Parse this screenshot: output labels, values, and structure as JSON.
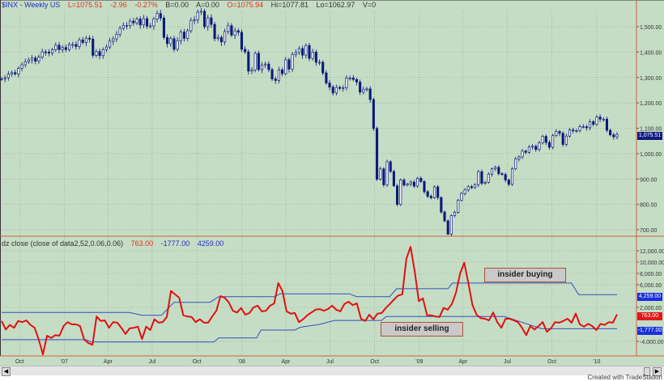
{
  "header": {
    "symbol": "$INX - Weekly  US",
    "last": "L=1075.51",
    "change": "-2.96",
    "change_pct": "-0.27%",
    "bid": "B=0.00",
    "ask": "A=0.00",
    "open": "O=1075.94",
    "high": "Hi=1077.81",
    "low": "Lo=1062.97",
    "volume": "V=0"
  },
  "indicator_header": {
    "name": "dz close (close of data2,52,0.06,0.06)",
    "value": "763.00",
    "lower_band": "-1777.00",
    "upper_band": "4259.00"
  },
  "annotations": {
    "buying": "insider buying",
    "selling": "insider selling"
  },
  "credit": "Created with TradeStation",
  "colors": {
    "background": "#c6ddc5",
    "candle": "#0a1a7a",
    "indicator": "#e01010",
    "bands": "#3050c0",
    "axis_line": "#d06040"
  },
  "chart_data": [
    {
      "type": "candlestick",
      "title": "$INX - Weekly",
      "interval": "weekly",
      "x_start": "2006-08-25",
      "x_end": "2010-02-12",
      "close": [
        1295,
        1299,
        1313,
        1319,
        1314,
        1336,
        1350,
        1362,
        1369,
        1377,
        1364,
        1380,
        1401,
        1400,
        1396,
        1409,
        1427,
        1410,
        1418,
        1410,
        1430,
        1430,
        1422,
        1448,
        1438,
        1455,
        1451,
        1387,
        1402,
        1386,
        1410,
        1420,
        1443,
        1452,
        1470,
        1494,
        1505,
        1505,
        1522,
        1515,
        1530,
        1507,
        1532,
        1502,
        1503,
        1530,
        1552,
        1534,
        1458,
        1433,
        1453,
        1411,
        1445,
        1479,
        1454,
        1484,
        1525,
        1527,
        1557,
        1561,
        1500,
        1535,
        1509,
        1453,
        1458,
        1440,
        1481,
        1504,
        1467,
        1484,
        1478,
        1411,
        1401,
        1325,
        1330,
        1395,
        1331,
        1349,
        1353,
        1331,
        1294,
        1288,
        1330,
        1315,
        1370,
        1333,
        1390,
        1398,
        1414,
        1388,
        1426,
        1375,
        1400,
        1360,
        1360,
        1318,
        1278,
        1262,
        1239,
        1261,
        1257,
        1260,
        1297,
        1298,
        1292,
        1282,
        1242,
        1252,
        1255,
        1213,
        1099,
        899,
        940,
        877,
        968,
        930,
        873,
        800,
        896,
        876,
        880,
        888,
        872,
        903,
        890,
        850,
        832,
        826,
        869,
        827,
        770,
        735,
        683,
        756,
        769,
        816,
        843,
        857,
        870,
        866,
        878,
        929,
        883,
        887,
        919,
        940,
        946,
        921,
        918,
        896,
        879,
        940,
        979,
        987,
        1010,
        1005,
        1026,
        1029,
        1016,
        1042,
        1068,
        1044,
        1025,
        1071,
        1087,
        1080,
        1036,
        1069,
        1093,
        1091,
        1091,
        1106,
        1106,
        1102,
        1126,
        1115,
        1144,
        1136,
        1136,
        1092,
        1074,
        1066,
        1075.51
      ],
      "last_value_label": "1,075.51",
      "y_ticks": [
        "1,500.00",
        "1,400.00",
        "1,300.00",
        "1,200.00",
        "1,100.00",
        "1,000.00",
        "900.00",
        "800.00",
        "700.00"
      ],
      "y_tick_values": [
        1500,
        1400,
        1300,
        1200,
        1100,
        1000,
        900,
        800,
        700
      ],
      "grid": true
    },
    {
      "type": "line",
      "title": "dz close (close of data2,52,0.06,0.06)",
      "x_start": "2006-08-25",
      "x_end": "2010-02-12",
      "series": [
        {
          "name": "dz close",
          "color": "#e01010",
          "values": [
            -400,
            -1900,
            -1100,
            -1600,
            -400,
            -600,
            -300,
            -1100,
            -1600,
            -3700,
            -6300,
            -3000,
            -3400,
            -2900,
            -3000,
            -1300,
            -600,
            -1000,
            -1000,
            -1300,
            -3700,
            -4300,
            -4600,
            400,
            -400,
            -300,
            -1600,
            -600,
            -700,
            -1600,
            -2700,
            -1700,
            -1600,
            -1400,
            -3600,
            -1400,
            -2000,
            -100,
            -700,
            -600,
            300,
            4900,
            4300,
            3700,
            600,
            400,
            300,
            -600,
            -100,
            -700,
            -700,
            400,
            1400,
            4000,
            3700,
            2900,
            1400,
            1100,
            1900,
            700,
            1000,
            2000,
            2300,
            1300,
            1400,
            2300,
            2700,
            6300,
            4900,
            1300,
            900,
            1000,
            -600,
            -100,
            600,
            1100,
            1600,
            1700,
            1400,
            1700,
            2300,
            1600,
            1300,
            2600,
            3000,
            2400,
            2700,
            0,
            -400,
            700,
            -100,
            900,
            1000,
            1900,
            2600,
            3400,
            4100,
            4300,
            10600,
            12700,
            8400,
            3100,
            3600,
            600,
            600,
            400,
            300,
            1900,
            1600,
            2600,
            4600,
            8000,
            9900,
            6300,
            2400,
            700,
            100,
            0,
            -300,
            1100,
            -600,
            -1600,
            0,
            0,
            -300,
            -600,
            -1600,
            -2900,
            -1300,
            -1900,
            -1300,
            -600,
            -2300,
            -1700,
            -600,
            -700,
            -400,
            0,
            -700,
            900,
            -1000,
            -1400,
            -900,
            -1300,
            -2000,
            -900,
            -1100,
            -600,
            -700,
            763
          ]
        },
        {
          "name": "upper",
          "color": "#3050c0",
          "points": [
            [
              "2006-08-25",
              1100
            ],
            [
              "2007-05-15",
              1100
            ],
            [
              "2007-06-10",
              600
            ],
            [
              "2007-07-20",
              600
            ],
            [
              "2007-08-15",
              2900
            ],
            [
              "2007-10-28",
              2900
            ],
            [
              "2007-11-15",
              3900
            ],
            [
              "2008-03-10",
              3900
            ],
            [
              "2008-03-20",
              4400
            ],
            [
              "2008-08-10",
              4400
            ],
            [
              "2008-08-25",
              3900
            ],
            [
              "2008-11-01",
              3900
            ],
            [
              "2008-11-15",
              5300
            ],
            [
              "2009-03-01",
              5300
            ],
            [
              "2009-03-10",
              6300
            ],
            [
              "2009-11-10",
              6300
            ],
            [
              "2009-11-25",
              4259
            ],
            [
              "2010-02-12",
              4259
            ]
          ]
        },
        {
          "name": "lower",
          "color": "#3050c0",
          "points": [
            [
              "2006-08-25",
              -3700
            ],
            [
              "2007-02-15",
              -3700
            ],
            [
              "2007-02-25",
              -4100
            ],
            [
              "2007-11-05",
              -4100
            ],
            [
              "2007-11-15",
              -3400
            ],
            [
              "2008-02-01",
              -3400
            ],
            [
              "2008-02-10",
              -2000
            ],
            [
              "2008-04-20",
              -2000
            ],
            [
              "2008-05-01",
              -1500
            ],
            [
              "2008-06-10",
              -1000
            ],
            [
              "2008-07-10",
              -300
            ],
            [
              "2008-10-15",
              -300
            ],
            [
              "2008-10-25",
              400
            ],
            [
              "2009-06-25",
              400
            ],
            [
              "2009-09-10",
              -1777
            ],
            [
              "2010-02-12",
              -1777
            ]
          ]
        }
      ],
      "y_ticks": [
        "12,000.00",
        "10,000.00",
        "8,000.00",
        "6,000.00",
        "2,000.00",
        "-4,000.00"
      ],
      "y_tick_values": [
        12000,
        10000,
        8000,
        6000,
        2000,
        -4000
      ],
      "value_labels": [
        "4,259.00",
        "763.00",
        "-1,777.00"
      ],
      "grid": true
    }
  ],
  "x_ticks": [
    {
      "label": "Oct",
      "date": "2006-10-01"
    },
    {
      "label": "'07",
      "date": "2007-01-01"
    },
    {
      "label": "Apr",
      "date": "2007-04-01"
    },
    {
      "label": "Jul",
      "date": "2007-07-01"
    },
    {
      "label": "Oct",
      "date": "2007-10-01"
    },
    {
      "label": "'08",
      "date": "2008-01-01"
    },
    {
      "label": "Apr",
      "date": "2008-04-01"
    },
    {
      "label": "Jul",
      "date": "2008-07-01"
    },
    {
      "label": "Oct",
      "date": "2008-10-01"
    },
    {
      "label": "'09",
      "date": "2009-01-01"
    },
    {
      "label": "Apr",
      "date": "2009-04-01"
    },
    {
      "label": "Jul",
      "date": "2009-07-01"
    },
    {
      "label": "Oct",
      "date": "2009-10-01"
    },
    {
      "label": "'10",
      "date": "2010-01-01"
    }
  ]
}
